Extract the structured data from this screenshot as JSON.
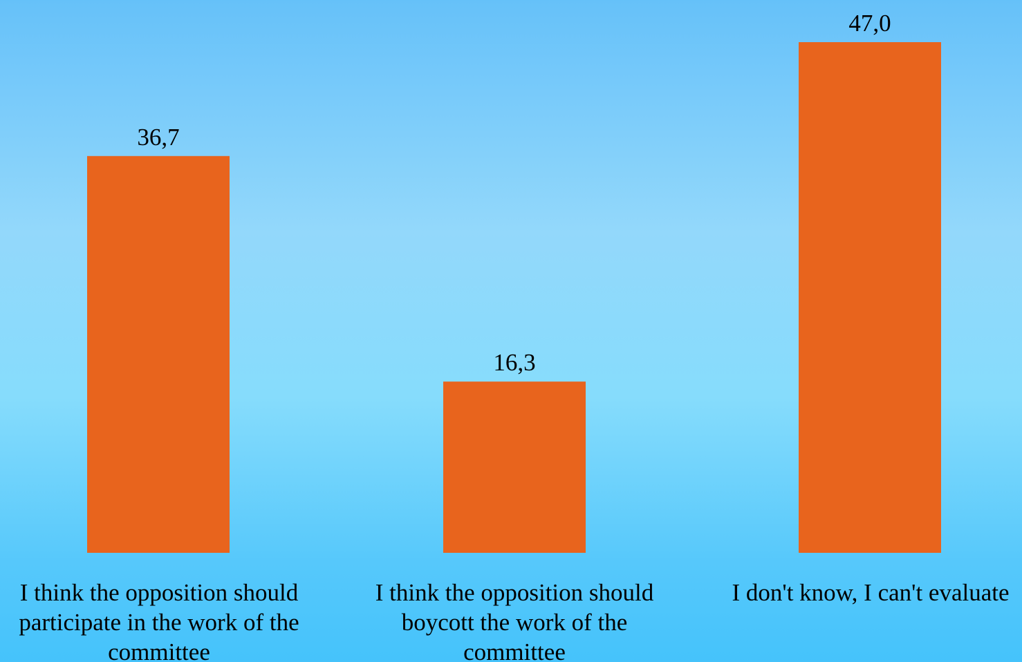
{
  "chart_data": {
    "type": "bar",
    "categories": [
      "I think the opposition should participate in the work of the committee",
      "I think the opposition should boycott the work of the committee",
      "I don't know, I can't evaluate"
    ],
    "values": [
      36.7,
      16.3,
      47.0
    ],
    "data_labels": [
      "36,7",
      "16,3",
      "47,0"
    ],
    "ylim": [
      0,
      47.0
    ],
    "bar_color": "#e8641d",
    "label_color": "#000000",
    "grid": false,
    "legend": "none"
  }
}
